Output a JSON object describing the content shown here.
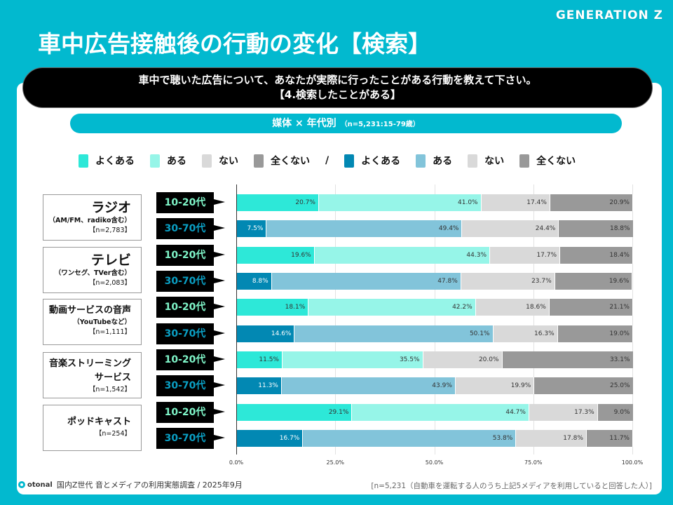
{
  "brand": "GENERATION Z",
  "title": "車中広告接触後の行動の変化【検索】",
  "question": {
    "line1": "車中で聴いた広告について、あなたが実際に行ったことがある行動を教えて下さい。",
    "line2": "【4.検索したことがある】"
  },
  "subtitle": {
    "main": "媒体 × 年代別",
    "note": "（n=5,231:15-79歳）"
  },
  "legend_sep": "/",
  "chart_data": {
    "type": "bar",
    "orientation": "horizontal-stacked-100",
    "xlim": [
      0,
      100
    ],
    "x_ticks": [
      "0.0%",
      "25.0%",
      "50.0%",
      "75.0%",
      "100.0%"
    ],
    "grid": true,
    "legend_placement": "top",
    "series_names": [
      "よくある",
      "ある",
      "ない",
      "全くない"
    ],
    "colors": {
      "young": [
        "#2de8d8",
        "#96f5e8",
        "#d9d9d9",
        "#999999"
      ],
      "old": [
        "#0288b3",
        "#82c4da",
        "#d9d9d9",
        "#999999"
      ]
    },
    "media": [
      {
        "name": "ラジオ",
        "sub": "（AM/FM、radiko含む）",
        "n": "【n=2,783】"
      },
      {
        "name": "テレビ",
        "sub": "（ワンセグ、TVer含む）",
        "n": "【n=2,083】"
      },
      {
        "name": "動画サービスの音声",
        "sub": "（YouTubeなど）",
        "n": "【n=1,111】"
      },
      {
        "name": "音楽ストリーミング",
        "sub": "サービス",
        "n": "【n=1,542】"
      },
      {
        "name": "ポッドキャスト",
        "sub": "",
        "n": "【n=254】"
      }
    ],
    "age_groups": [
      "10-20代",
      "30-70代"
    ],
    "age_colors": [
      "#7ff5c8",
      "#0a9fc4"
    ],
    "rows": [
      {
        "media": "ラジオ",
        "age": "10-20代",
        "values": [
          20.7,
          41.0,
          17.4,
          20.9
        ]
      },
      {
        "media": "ラジオ",
        "age": "30-70代",
        "values": [
          7.5,
          49.4,
          24.4,
          18.8
        ]
      },
      {
        "media": "テレビ",
        "age": "10-20代",
        "values": [
          19.6,
          44.3,
          17.7,
          18.4
        ]
      },
      {
        "media": "テレビ",
        "age": "30-70代",
        "values": [
          8.8,
          47.8,
          23.7,
          19.6
        ]
      },
      {
        "media": "動画サービスの音声",
        "age": "10-20代",
        "values": [
          18.1,
          42.2,
          18.6,
          21.1
        ]
      },
      {
        "media": "動画サービスの音声",
        "age": "30-70代",
        "values": [
          14.6,
          50.1,
          16.3,
          19.0
        ]
      },
      {
        "media": "音楽ストリーミングサービス",
        "age": "10-20代",
        "values": [
          11.5,
          35.5,
          20.0,
          33.1
        ]
      },
      {
        "media": "音楽ストリーミングサービス",
        "age": "30-70代",
        "values": [
          11.3,
          43.9,
          19.9,
          25.0
        ]
      },
      {
        "media": "ポッドキャスト",
        "age": "10-20代",
        "values": [
          29.1,
          44.7,
          17.3,
          9.0
        ]
      },
      {
        "media": "ポッドキャスト",
        "age": "30-70代",
        "values": [
          16.7,
          53.8,
          17.8,
          11.7
        ]
      }
    ]
  },
  "footer": {
    "logo": "otonal",
    "source": "国内Z世代 音とメディアの利用実態調査 / 2025年9月",
    "note": "[n=5,231（自動車を運転する人のうち上記5メディアを利用していると回答した人）]"
  }
}
